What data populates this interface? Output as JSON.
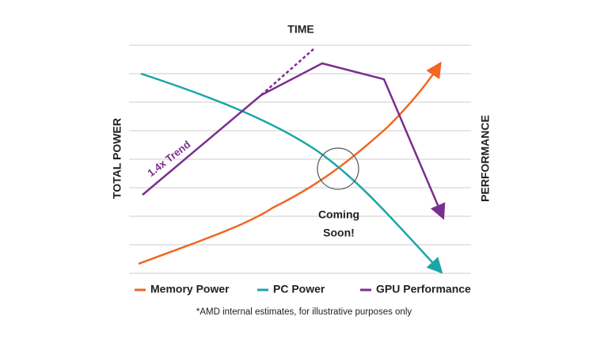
{
  "header": {
    "title": "TIME",
    "left_axis": "TOTAL POWER",
    "right_axis": "PERFORMANCE"
  },
  "annotations": {
    "trend": "1.4x Trend",
    "coming": [
      "Coming",
      "Soon!"
    ]
  },
  "legend": [
    {
      "name": "Memory Power",
      "color": "#f26522"
    },
    {
      "name": "PC Power",
      "color": "#1aa5a8"
    },
    {
      "name": "GPU Performance",
      "color": "#7a2f8f"
    }
  ],
  "footnote": "*AMD internal estimates, for illustrative purposes only"
}
